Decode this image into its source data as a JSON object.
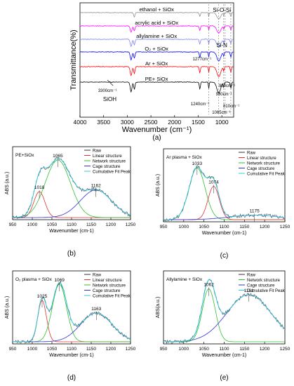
{
  "chart_data": [
    {
      "id": "a",
      "type": "line",
      "panel_label": "(a)",
      "xlabel": "Wavenumber (cm⁻¹)",
      "ylabel": "Transmittance(%)",
      "xlim": [
        4000,
        750
      ],
      "xticks": [
        4000,
        3500,
        3000,
        2500,
        2000,
        1500,
        1000
      ],
      "series": [
        {
          "name": "ethanol + SiOx",
          "color": "#909090"
        },
        {
          "name": "acrylic acid + SiOx",
          "color": "#ff00ff"
        },
        {
          "name": "allylamine + SiOx",
          "color": "#8080ff"
        },
        {
          "name": "O₂ + SiOx",
          "color": "#0000ff"
        },
        {
          "name": "Ar + SiOx",
          "color": "#ff0000"
        },
        {
          "name": "PE+ SiOx",
          "color": "#000000"
        }
      ],
      "annotations": [
        "Si-O-Si",
        "Si-N",
        "1277cm⁻¹",
        "3300cm⁻¹",
        "SiOH",
        "1240cm⁻¹",
        "960cm⁻¹",
        "930cm⁻¹",
        "810cm⁻¹",
        "1065cm⁻¹"
      ]
    },
    {
      "id": "b",
      "type": "line",
      "panel_label": "(b)",
      "title": "PE+SiOx",
      "xlabel": "Wavenumber (cm-1)",
      "ylabel": "ABS (a.u.)",
      "xlim": [
        950,
        1250
      ],
      "xticks": [
        950,
        1000,
        1050,
        1100,
        1150,
        1200,
        1250
      ],
      "legend": [
        "Raw",
        "Linear structure",
        "Network structure",
        "Cage structure",
        "Cumulative Fit Peak"
      ],
      "peaks": [
        {
          "center": 1018,
          "height": 0.45,
          "width": 14,
          "color": "#e03030"
        },
        {
          "center": 1065,
          "height": 1.0,
          "width": 32,
          "color": "#30c030"
        },
        {
          "center": 1162,
          "height": 0.48,
          "width": 40,
          "color": "#3030d0"
        }
      ],
      "peak_labels": [
        "1018",
        "1065",
        "1162"
      ]
    },
    {
      "id": "c",
      "type": "line",
      "panel_label": "(c)",
      "title": "Ar plasma + SiOx",
      "xlabel": "Wavenumber (cm-1)",
      "ylabel": "ABS (a.u.)",
      "xlim": [
        950,
        1250
      ],
      "xticks": [
        950,
        1000,
        1050,
        1100,
        1150,
        1200,
        1250
      ],
      "legend": [
        "Raw",
        "Linear structure",
        "Network structure",
        "Cage structure",
        "Cumulative Fit Peak"
      ],
      "peaks": [
        {
          "center": 1033,
          "height": 0.9,
          "width": 20,
          "color": "#30c030"
        },
        {
          "center": 1074,
          "height": 0.58,
          "width": 14,
          "color": "#e03030"
        },
        {
          "center": 1175,
          "height": 0.08,
          "width": 60,
          "color": "#3030d0"
        }
      ],
      "peak_labels": [
        "1033",
        "1074",
        "1175"
      ]
    },
    {
      "id": "d",
      "type": "line",
      "panel_label": "(d)",
      "title": "O₂ plasma + SiOx",
      "xlabel": "Wavenumber (cm-1)",
      "ylabel": "ABS (a.u.)",
      "xlim": [
        950,
        1250
      ],
      "xticks": [
        950,
        1000,
        1050,
        1100,
        1150,
        1200,
        1250
      ],
      "legend": [
        "Raw",
        "Linear structure",
        "Network structure",
        "Cage structure",
        "Cumulative Fit Peak"
      ],
      "peaks": [
        {
          "center": 1025,
          "height": 0.72,
          "width": 11,
          "color": "#e03030"
        },
        {
          "center": 1069,
          "height": 1.0,
          "width": 18,
          "color": "#30c030"
        },
        {
          "center": 1163,
          "height": 0.5,
          "width": 40,
          "color": "#3030d0"
        }
      ],
      "peak_labels": [
        "1025",
        "1069",
        "1163"
      ]
    },
    {
      "id": "e",
      "type": "line",
      "panel_label": "(e)",
      "title": "Allylamine + SiOx",
      "xlabel": "Wavenumber (cm-1)",
      "ylabel": "ABS(a.u.)",
      "xlim": [
        950,
        1250
      ],
      "xticks": [
        950,
        1000,
        1050,
        1100,
        1150,
        1200,
        1250
      ],
      "legend": [
        "Raw",
        "Network structure",
        "Cage structure",
        "Cumulative Fit Peak"
      ],
      "peaks": [
        {
          "center": 1062,
          "height": 0.92,
          "width": 16,
          "color": "#30c030"
        },
        {
          "center": 1161,
          "height": 0.82,
          "width": 55,
          "color": "#3030d0"
        }
      ],
      "peak_labels": [
        "1062",
        "1161"
      ]
    }
  ]
}
